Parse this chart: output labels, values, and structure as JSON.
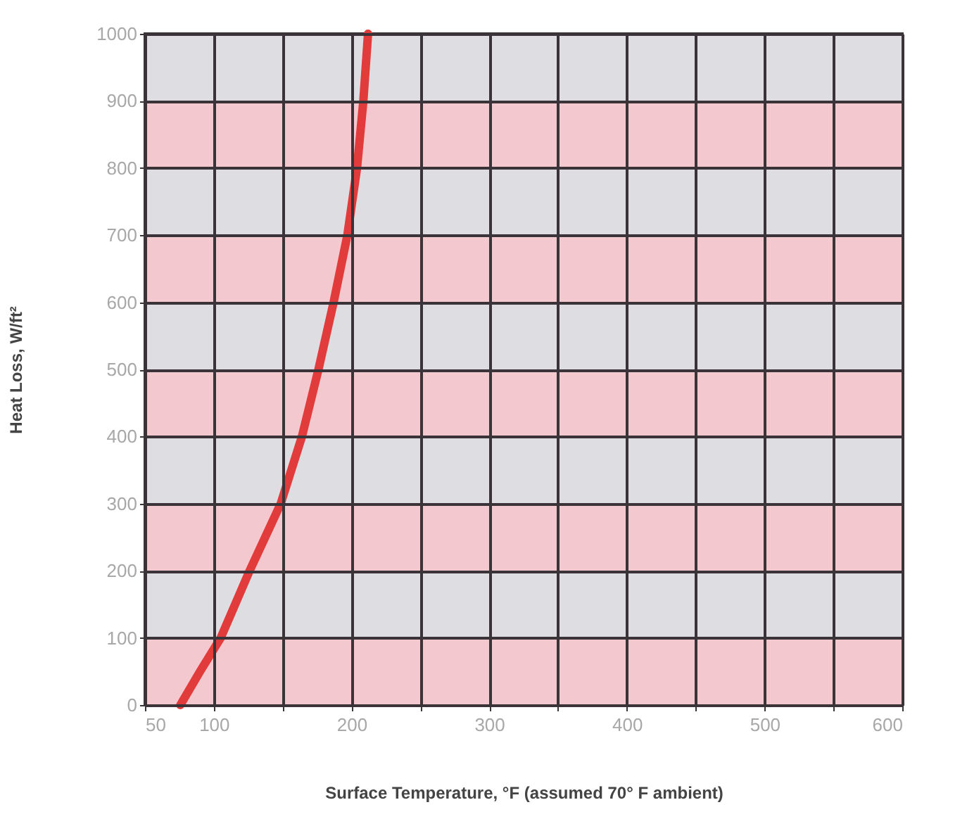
{
  "chart_data": {
    "type": "line",
    "xlabel": "Surface Temperature, °F (assumed 70° F ambient)",
    "ylabel": "Heat Loss, W/ft²",
    "x": [
      75.7,
      90,
      105,
      126,
      148.6,
      164,
      176,
      187,
      197,
      204,
      208.6,
      212
    ],
    "series": [
      {
        "color": "#e23b3b",
        "values": [
          0,
          50,
          100,
          200,
          300,
          400,
          500,
          600,
          700,
          800,
          900,
          1000
        ]
      }
    ],
    "xlim": [
      50,
      600
    ],
    "xticks": [
      50,
      100,
      {
        "value": 150,
        "label": null
      },
      200,
      {
        "value": 250,
        "label": null
      },
      300,
      {
        "value": 350,
        "label": null
      },
      400,
      {
        "value": 450,
        "label": null
      },
      500,
      {
        "value": 550,
        "label": null
      },
      600
    ],
    "ylim": [
      0,
      1000
    ],
    "yticks": [
      0,
      100,
      200,
      300,
      400,
      500,
      600,
      700,
      800,
      900,
      1000
    ],
    "grid": true,
    "marker": "none",
    "line_style": "solid",
    "bands": [
      {
        "axis": "y",
        "from": 0,
        "to": 100,
        "color": "#f3c8cf"
      },
      {
        "axis": "y",
        "from": 100,
        "to": 200,
        "color": "#dddde2"
      },
      {
        "axis": "y",
        "from": 200,
        "to": 300,
        "color": "#f3c8cf"
      },
      {
        "axis": "y",
        "from": 300,
        "to": 400,
        "color": "#dddde2"
      },
      {
        "axis": "y",
        "from": 400,
        "to": 500,
        "color": "#f3c8cf"
      },
      {
        "axis": "y",
        "from": 500,
        "to": 600,
        "color": "#dddde2"
      },
      {
        "axis": "y",
        "from": 600,
        "to": 700,
        "color": "#f3c8cf"
      },
      {
        "axis": "y",
        "from": 700,
        "to": 800,
        "color": "#dddde2"
      },
      {
        "axis": "y",
        "from": 800,
        "to": 900,
        "color": "#f3c8cf"
      },
      {
        "axis": "y",
        "from": 900,
        "to": 1000,
        "color": "#dddde2"
      }
    ]
  }
}
